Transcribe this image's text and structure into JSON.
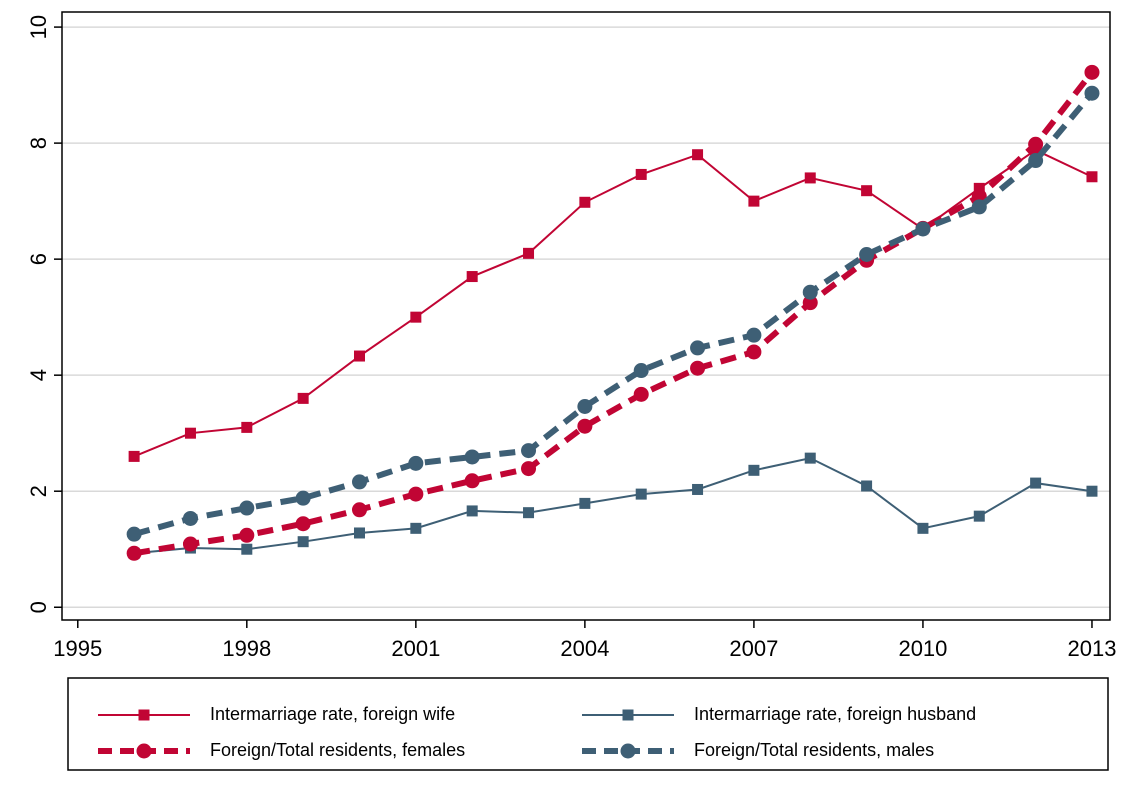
{
  "chart_data": {
    "type": "line",
    "x": [
      1996,
      1997,
      1998,
      1999,
      2000,
      2001,
      2002,
      2003,
      2004,
      2005,
      2006,
      2007,
      2008,
      2009,
      2010,
      2011,
      2012,
      2013
    ],
    "series": [
      {
        "name": "Intermarriage rate, foreign wife",
        "color": "#c10534",
        "line_style": "solid",
        "marker": "square",
        "values": [
          2.6,
          3.0,
          3.1,
          3.6,
          4.33,
          5.0,
          5.7,
          6.1,
          6.98,
          7.46,
          7.8,
          7.0,
          7.4,
          7.18,
          6.52,
          7.22,
          7.88,
          7.42
        ]
      },
      {
        "name": "Intermarriage rate, foreign husband",
        "color": "#3e5f75",
        "line_style": "solid",
        "marker": "square",
        "values": [
          0.93,
          1.02,
          1.0,
          1.13,
          1.28,
          1.36,
          1.66,
          1.63,
          1.79,
          1.95,
          2.03,
          2.36,
          2.57,
          2.09,
          1.36,
          1.57,
          2.14,
          2.0
        ]
      },
      {
        "name": "Foreign/Total residents, females",
        "color": "#c10534",
        "line_style": "dash",
        "marker": "circle",
        "values": [
          0.93,
          1.09,
          1.24,
          1.44,
          1.68,
          1.95,
          2.18,
          2.39,
          3.12,
          3.67,
          4.12,
          4.4,
          5.25,
          5.98,
          6.53,
          7.08,
          7.98,
          9.22
        ]
      },
      {
        "name": "Foreign/Total residents, males",
        "color": "#3e5f75",
        "line_style": "dash",
        "marker": "circle",
        "values": [
          1.26,
          1.53,
          1.71,
          1.88,
          2.16,
          2.48,
          2.59,
          2.7,
          3.46,
          4.08,
          4.47,
          4.69,
          5.43,
          6.08,
          6.52,
          6.9,
          7.7,
          8.86
        ]
      }
    ],
    "xlim": [
      1994.72,
      2013.32
    ],
    "xticks": [
      1995,
      1998,
      2001,
      2004,
      2007,
      2010,
      2013
    ],
    "ylim": [
      -0.22,
      10.26
    ],
    "yticks": [
      0,
      2,
      4,
      6,
      8,
      10
    ],
    "grid": true,
    "legend": "bottom"
  }
}
